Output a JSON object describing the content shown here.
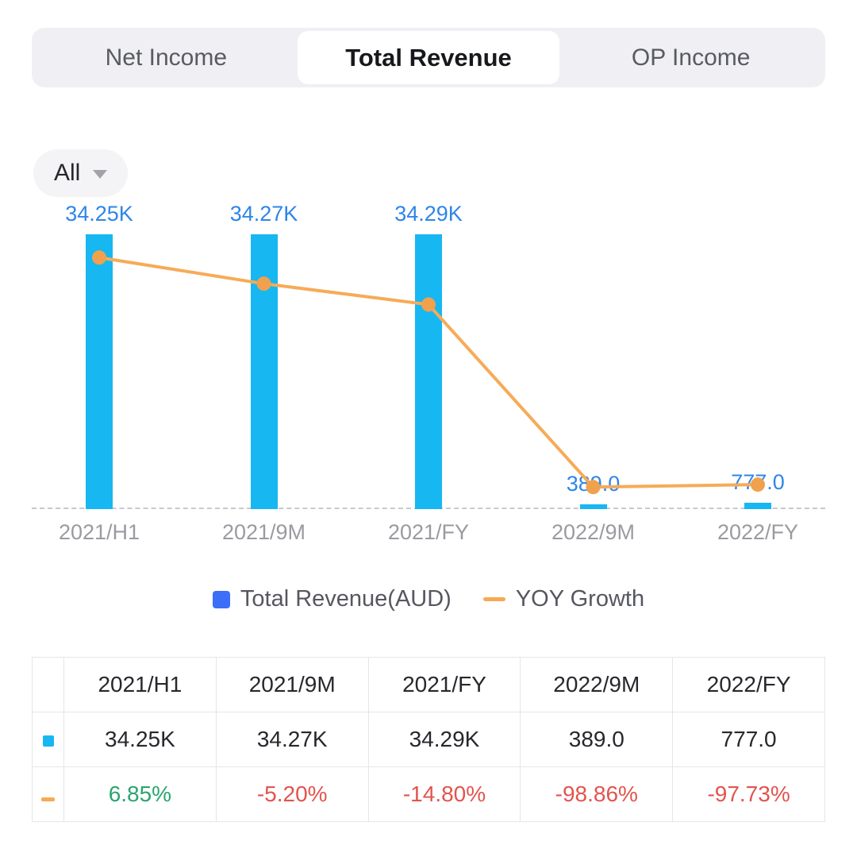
{
  "tabs": {
    "items": [
      {
        "label": "Net Income",
        "active": false
      },
      {
        "label": "Total Revenue",
        "active": true
      },
      {
        "label": "OP Income",
        "active": false
      }
    ]
  },
  "filter": {
    "selected": "All"
  },
  "chart_data": {
    "type": "bar",
    "categories": [
      "2021/H1",
      "2021/9M",
      "2021/FY",
      "2022/9M",
      "2022/FY"
    ],
    "series": [
      {
        "name": "Total Revenue(AUD)",
        "type": "bar",
        "values": [
          34250,
          34270,
          34290,
          389,
          777
        ],
        "labels": [
          "34.25K",
          "34.27K",
          "34.29K",
          "389.0",
          "777.0"
        ],
        "color": "#17B7F2",
        "label_color": "#2E86E8"
      },
      {
        "name": "YOY Growth",
        "type": "line",
        "values": [
          6.85,
          -5.2,
          -14.8,
          -98.86,
          -97.73
        ],
        "color": "#F6AB57",
        "dot_color": "#F0A14E"
      }
    ],
    "y1_max": 34290,
    "y2_range": [
      -109,
      34
    ],
    "baseline": "dashed-zero-line",
    "grid": false,
    "legend_position": "bottom",
    "layout": {
      "first_center": 0.085,
      "step": 0.2075
    }
  },
  "legend": {
    "items": [
      {
        "label": "Total Revenue(AUD)",
        "marker": "square",
        "color": "#3D6EF7"
      },
      {
        "label": "YOY Growth",
        "marker": "dash",
        "color": "#F5AA52"
      }
    ]
  },
  "table": {
    "headers": [
      "",
      "2021/H1",
      "2021/9M",
      "2021/FY",
      "2022/9M",
      "2022/FY"
    ],
    "rows": [
      {
        "marker": "square",
        "marker_color": "#17B7F2",
        "cells": [
          "34.25K",
          "34.27K",
          "34.29K",
          "389.0",
          "777.0"
        ],
        "cell_colors": [
          "#27282C",
          "#27282C",
          "#27282C",
          "#27282C",
          "#27282C"
        ]
      },
      {
        "marker": "dash",
        "marker_color": "#F5AA52",
        "cells": [
          "6.85%",
          "-5.20%",
          "-14.80%",
          "-98.86%",
          "-97.73%"
        ],
        "cell_colors": [
          "#2AA56E",
          "#E2544F",
          "#E2544F",
          "#E2544F",
          "#E2544F"
        ]
      }
    ]
  },
  "colors": {
    "tab_bar_bg": "#EFEFF4",
    "bar": "#17B7F2",
    "line": "#F6AB57",
    "positive": "#2AA56E",
    "negative": "#E2544F",
    "axis_label": "#9A9BA1",
    "dashed_line": "#C9C9CF"
  }
}
